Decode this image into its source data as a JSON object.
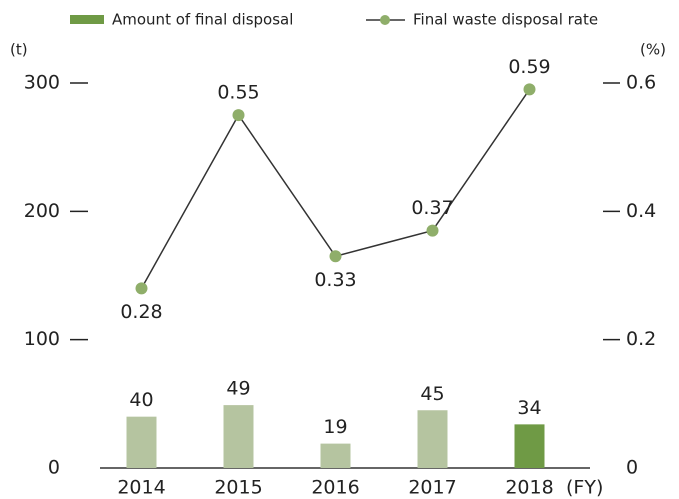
{
  "chart_data": {
    "type": "bar_line",
    "y_unit": "(t)",
    "y2_unit": "(%)",
    "x_unit": "(FY)",
    "categories": [
      "2014",
      "2015",
      "2016",
      "2017",
      "2018"
    ],
    "series": [
      {
        "name": "Amount of final disposal",
        "type": "bar",
        "axis": "y",
        "color": "#6f9a45",
        "colors": [
          "#b5c4a0",
          "#b5c4a0",
          "#b5c4a0",
          "#b5c4a0",
          "#6f9a45"
        ],
        "values": [
          40,
          49,
          19,
          45,
          34
        ]
      },
      {
        "name": "Final waste disposal rate",
        "type": "line",
        "axis": "y2",
        "color": "#333333",
        "marker_color": "#8fae6a",
        "values": [
          0.28,
          0.55,
          0.33,
          0.37,
          0.59
        ]
      }
    ],
    "ylim": [
      0,
      300
    ],
    "yticks": [
      0,
      100,
      200,
      300
    ],
    "y2lim": [
      0,
      0.6
    ],
    "y2ticks": [
      0,
      0.2,
      0.4,
      0.6
    ]
  }
}
